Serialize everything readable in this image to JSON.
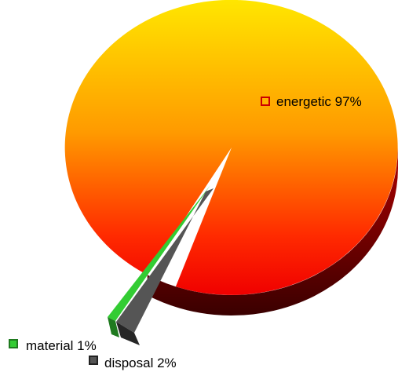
{
  "chart_data": {
    "type": "pie",
    "style": "3d-exploded",
    "series": [
      {
        "label": "energetic",
        "value": 97,
        "value_label": "97%",
        "color": "#ff9900"
      },
      {
        "label": "material",
        "value": 1,
        "value_label": "1%",
        "color": "#33cc33"
      },
      {
        "label": "disposal",
        "value": 2,
        "value_label": "2%",
        "color": "#4a4a4a"
      }
    ],
    "labels": {
      "energetic": "energetic 97%",
      "material": "material 1%",
      "disposal": "disposal 2%"
    },
    "legend": "labels next to slices"
  }
}
